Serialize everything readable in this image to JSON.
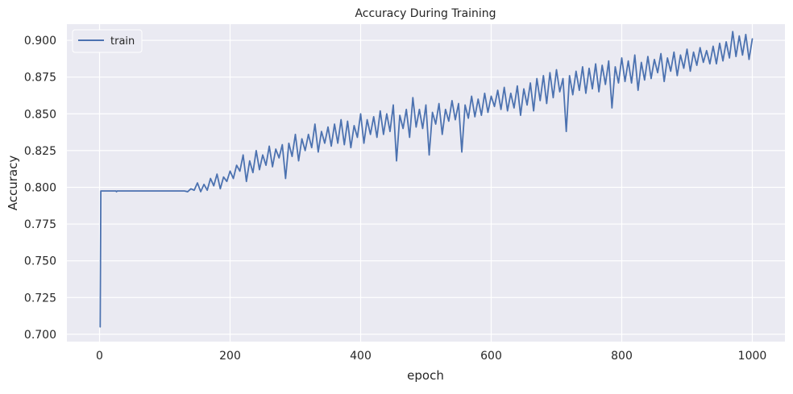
{
  "chart_data": {
    "type": "line",
    "title": "Accuracy During Training",
    "xlabel": "epoch",
    "ylabel": "Accuracy",
    "xlim": [
      -50,
      1050
    ],
    "ylim": [
      0.695,
      0.911
    ],
    "xticks": [
      0,
      200,
      400,
      600,
      800,
      1000
    ],
    "xtick_labels": [
      "0",
      "200",
      "400",
      "600",
      "800",
      "1000"
    ],
    "yticks": [
      0.7,
      0.725,
      0.75,
      0.775,
      0.8,
      0.825,
      0.85,
      0.875,
      0.9
    ],
    "ytick_labels": [
      "0.700",
      "0.725",
      "0.750",
      "0.775",
      "0.800",
      "0.825",
      "0.850",
      "0.875",
      "0.900"
    ],
    "grid": true,
    "legend": {
      "location": "top-left",
      "entries": [
        "train"
      ]
    },
    "colors": {
      "background": "#eaeaf2",
      "grid": "#ffffff",
      "train": "#4c72b0"
    },
    "series": [
      {
        "name": "train",
        "x": [
          1,
          2,
          3,
          25,
          26,
          27,
          130,
          135,
          140,
          145,
          150,
          155,
          160,
          165,
          170,
          175,
          180,
          185,
          190,
          195,
          200,
          205,
          210,
          215,
          220,
          225,
          230,
          235,
          240,
          245,
          250,
          255,
          260,
          265,
          270,
          275,
          280,
          285,
          290,
          295,
          300,
          305,
          310,
          315,
          320,
          325,
          330,
          335,
          340,
          345,
          350,
          355,
          360,
          365,
          370,
          375,
          380,
          385,
          390,
          395,
          400,
          405,
          410,
          415,
          420,
          425,
          430,
          435,
          440,
          445,
          450,
          455,
          460,
          465,
          470,
          475,
          480,
          485,
          490,
          495,
          500,
          505,
          510,
          515,
          520,
          525,
          530,
          535,
          540,
          545,
          550,
          555,
          560,
          565,
          570,
          575,
          580,
          585,
          590,
          595,
          600,
          605,
          610,
          615,
          620,
          625,
          630,
          635,
          640,
          645,
          650,
          655,
          660,
          665,
          670,
          675,
          680,
          685,
          690,
          695,
          700,
          705,
          710,
          715,
          720,
          725,
          730,
          735,
          740,
          745,
          750,
          755,
          760,
          765,
          770,
          775,
          780,
          785,
          790,
          795,
          800,
          805,
          810,
          815,
          820,
          825,
          830,
          835,
          840,
          845,
          850,
          855,
          860,
          865,
          870,
          875,
          880,
          885,
          890,
          895,
          900,
          905,
          910,
          915,
          920,
          925,
          930,
          935,
          940,
          945,
          950,
          955,
          960,
          965,
          970,
          975,
          980,
          985,
          990,
          995,
          1000
        ],
        "y": [
          0.705,
          0.7975,
          0.7975,
          0.7975,
          0.797,
          0.7975,
          0.7975,
          0.797,
          0.799,
          0.798,
          0.803,
          0.797,
          0.802,
          0.798,
          0.806,
          0.801,
          0.809,
          0.799,
          0.807,
          0.804,
          0.811,
          0.806,
          0.815,
          0.811,
          0.822,
          0.804,
          0.818,
          0.81,
          0.825,
          0.812,
          0.822,
          0.815,
          0.828,
          0.814,
          0.826,
          0.82,
          0.829,
          0.806,
          0.83,
          0.821,
          0.836,
          0.818,
          0.833,
          0.825,
          0.836,
          0.827,
          0.843,
          0.824,
          0.838,
          0.83,
          0.841,
          0.828,
          0.843,
          0.83,
          0.846,
          0.829,
          0.845,
          0.827,
          0.842,
          0.834,
          0.85,
          0.83,
          0.846,
          0.836,
          0.848,
          0.834,
          0.852,
          0.836,
          0.85,
          0.838,
          0.856,
          0.818,
          0.849,
          0.84,
          0.853,
          0.834,
          0.861,
          0.841,
          0.853,
          0.84,
          0.856,
          0.822,
          0.851,
          0.843,
          0.857,
          0.836,
          0.853,
          0.845,
          0.859,
          0.846,
          0.857,
          0.824,
          0.856,
          0.847,
          0.862,
          0.848,
          0.86,
          0.849,
          0.864,
          0.851,
          0.862,
          0.855,
          0.866,
          0.853,
          0.868,
          0.852,
          0.864,
          0.854,
          0.869,
          0.849,
          0.867,
          0.856,
          0.871,
          0.852,
          0.874,
          0.859,
          0.876,
          0.857,
          0.878,
          0.861,
          0.88,
          0.865,
          0.874,
          0.838,
          0.876,
          0.863,
          0.879,
          0.866,
          0.882,
          0.864,
          0.881,
          0.867,
          0.884,
          0.865,
          0.883,
          0.87,
          0.886,
          0.854,
          0.882,
          0.871,
          0.888,
          0.872,
          0.886,
          0.871,
          0.89,
          0.866,
          0.885,
          0.873,
          0.889,
          0.874,
          0.887,
          0.878,
          0.891,
          0.872,
          0.888,
          0.879,
          0.892,
          0.876,
          0.89,
          0.881,
          0.894,
          0.879,
          0.892,
          0.883,
          0.895,
          0.885,
          0.893,
          0.884,
          0.896,
          0.884,
          0.898,
          0.886,
          0.899,
          0.888,
          0.906,
          0.889,
          0.903,
          0.89,
          0.904,
          0.887,
          0.901
        ]
      }
    ]
  }
}
